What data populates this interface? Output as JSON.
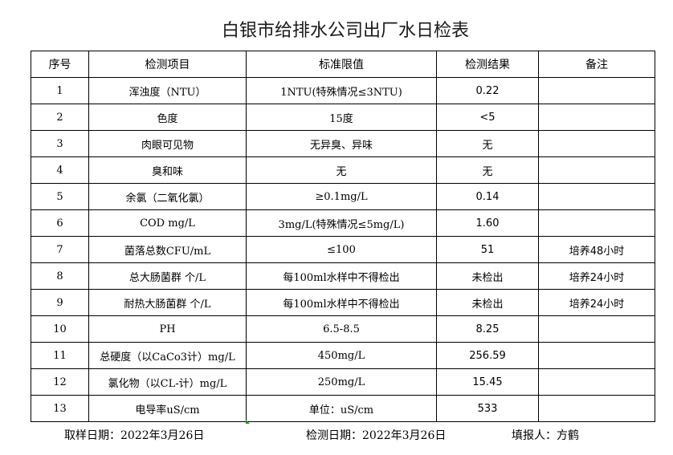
{
  "title": "白银市给排水公司出厂水日检表",
  "headers": [
    "序号",
    "检测项目",
    "标准限值",
    "检测结果",
    "备注"
  ],
  "rows": [
    [
      "1",
      "浑浊度（NTU）",
      "1NTU(特殊情况≤3NTU)",
      "0.22",
      ""
    ],
    [
      "2",
      "色度",
      "15度",
      "<5",
      ""
    ],
    [
      "3",
      "肉眼可见物",
      "无异臭、异味",
      "无",
      ""
    ],
    [
      "4",
      "臭和味",
      "无",
      "无",
      ""
    ],
    [
      "5",
      "余氯（二氧化氯）",
      "≥0.1mg/L",
      "0.14",
      ""
    ],
    [
      "6",
      "COD          mg/L",
      "3mg/L(特殊情况≤5mg/L)",
      "1.60",
      ""
    ],
    [
      "7",
      "菌落总数CFU/mL",
      "≤100",
      "51",
      "培养48小时"
    ],
    [
      "8",
      "总大肠菌群 个/L",
      "每100ml水样中不得检出",
      "未检出",
      "培养24小时"
    ],
    [
      "9",
      "耐热大肠菌群 个/L",
      "每100ml水样中不得检出",
      "未检出",
      "培养24小时"
    ],
    [
      "10",
      "PH",
      "6.5-8.5",
      "8.25",
      ""
    ],
    [
      "11",
      "总硬度（以CaCo3计）mg/L",
      "450mg/L",
      "256.59",
      ""
    ],
    [
      "12",
      "氯化物（以CL-计）mg/L",
      "250mg/L",
      "15.45",
      ""
    ],
    [
      "13",
      "电导率uS/cm",
      "单位：uS/cm",
      "533",
      ""
    ]
  ],
  "footer": {
    "sample_date": "取样日期：2022年3月26日",
    "test_date": "检测日期：2022年3月26日",
    "reporter": "填报人：方鹤"
  }
}
